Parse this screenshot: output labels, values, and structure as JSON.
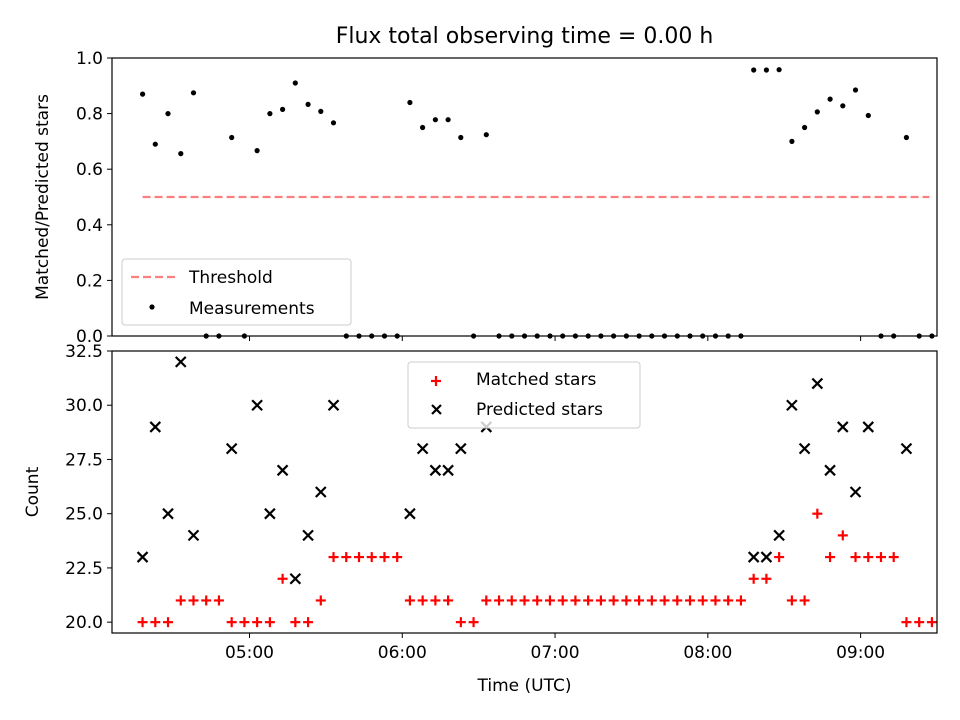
{
  "figure": {
    "title": "Flux total observing time = 0.00 h"
  },
  "chart_data": [
    {
      "type": "scatter",
      "title": "Flux total observing time = 0.00 h",
      "xlabel": "",
      "ylabel": "Matched/Predicted stars",
      "xlim": [
        "04:06",
        "09:30"
      ],
      "ylim": [
        0,
        1.0
      ],
      "yticks": [
        0.0,
        0.2,
        0.4,
        0.6,
        0.8,
        1.0
      ],
      "ytick_labels": [
        "0.0",
        "0.2",
        "0.4",
        "0.6",
        "0.8",
        "1.0"
      ],
      "grid": false,
      "legend_position": "lower-left",
      "series": [
        {
          "name": "Threshold",
          "kind": "dashed-line",
          "color": "#ff7f7f",
          "x": [
            "04:18",
            "09:27"
          ],
          "y": [
            0.5,
            0.5
          ]
        },
        {
          "name": "Measurements",
          "kind": "points",
          "color": "#000000",
          "points": [
            [
              "04:18",
              0.87
            ],
            [
              "04:23",
              0.69
            ],
            [
              "04:28",
              0.8
            ],
            [
              "04:33",
              0.656
            ],
            [
              "04:38",
              0.875
            ],
            [
              "04:43",
              0.0
            ],
            [
              "04:48",
              0.0
            ],
            [
              "04:53",
              0.714
            ],
            [
              "04:58",
              0.0
            ],
            [
              "05:03",
              0.667
            ],
            [
              "05:08",
              0.8
            ],
            [
              "05:13",
              0.815
            ],
            [
              "05:18",
              0.91
            ],
            [
              "05:23",
              0.833
            ],
            [
              "05:28",
              0.808
            ],
            [
              "05:33",
              0.767
            ],
            [
              "05:38",
              0.0
            ],
            [
              "05:43",
              0.0
            ],
            [
              "05:48",
              0.0
            ],
            [
              "05:53",
              0.0
            ],
            [
              "05:58",
              0.0
            ],
            [
              "06:03",
              0.84
            ],
            [
              "06:08",
              0.75
            ],
            [
              "06:13",
              0.778
            ],
            [
              "06:18",
              0.778
            ],
            [
              "06:23",
              0.714
            ],
            [
              "06:28",
              0.0
            ],
            [
              "06:33",
              0.724
            ],
            [
              "06:38",
              0.0
            ],
            [
              "06:43",
              0.0
            ],
            [
              "06:48",
              0.0
            ],
            [
              "06:53",
              0.0
            ],
            [
              "06:58",
              0.0
            ],
            [
              "07:03",
              0.0
            ],
            [
              "07:08",
              0.0
            ],
            [
              "07:13",
              0.0
            ],
            [
              "07:18",
              0.0
            ],
            [
              "07:23",
              0.0
            ],
            [
              "07:28",
              0.0
            ],
            [
              "07:33",
              0.0
            ],
            [
              "07:38",
              0.0
            ],
            [
              "07:43",
              0.0
            ],
            [
              "07:48",
              0.0
            ],
            [
              "07:53",
              0.0
            ],
            [
              "07:58",
              0.0
            ],
            [
              "08:03",
              0.0
            ],
            [
              "08:08",
              0.0
            ],
            [
              "08:13",
              0.0
            ],
            [
              "08:18",
              0.957
            ],
            [
              "08:23",
              0.957
            ],
            [
              "08:28",
              0.958
            ],
            [
              "08:33",
              0.7
            ],
            [
              "08:38",
              0.75
            ],
            [
              "08:43",
              0.806
            ],
            [
              "08:48",
              0.852
            ],
            [
              "08:53",
              0.828
            ],
            [
              "08:58",
              0.885
            ],
            [
              "09:03",
              0.793
            ],
            [
              "09:08",
              0.0
            ],
            [
              "09:13",
              0.0
            ],
            [
              "09:18",
              0.714
            ],
            [
              "09:23",
              0.0
            ],
            [
              "09:28",
              0.0
            ]
          ]
        }
      ]
    },
    {
      "type": "scatter",
      "title": "",
      "xlabel": "Time (UTC)",
      "ylabel": "Count",
      "xlim": [
        "04:06",
        "09:30"
      ],
      "ylim": [
        19.5,
        32.5
      ],
      "xticks": [
        "05:00",
        "06:00",
        "07:00",
        "08:00",
        "09:00"
      ],
      "xtick_labels": [
        "05:00",
        "06:00",
        "07:00",
        "08:00",
        "09:00"
      ],
      "yticks": [
        20.0,
        22.5,
        25.0,
        27.5,
        30.0,
        32.5
      ],
      "ytick_labels": [
        "20.0",
        "22.5",
        "25.0",
        "27.5",
        "30.0",
        "32.5"
      ],
      "grid": false,
      "legend_position": "upper-center",
      "series": [
        {
          "name": "Matched stars",
          "marker": "plus",
          "color": "#ff0000",
          "points": [
            [
              "04:18",
              20
            ],
            [
              "04:23",
              20
            ],
            [
              "04:28",
              20
            ],
            [
              "04:33",
              21
            ],
            [
              "04:38",
              21
            ],
            [
              "04:43",
              21
            ],
            [
              "04:48",
              21
            ],
            [
              "04:53",
              20
            ],
            [
              "04:58",
              20
            ],
            [
              "05:03",
              20
            ],
            [
              "05:08",
              20
            ],
            [
              "05:13",
              22
            ],
            [
              "05:18",
              20
            ],
            [
              "05:23",
              20
            ],
            [
              "05:28",
              21
            ],
            [
              "05:33",
              23
            ],
            [
              "05:38",
              23
            ],
            [
              "05:43",
              23
            ],
            [
              "05:48",
              23
            ],
            [
              "05:53",
              23
            ],
            [
              "05:58",
              23
            ],
            [
              "06:03",
              21
            ],
            [
              "06:08",
              21
            ],
            [
              "06:13",
              21
            ],
            [
              "06:18",
              21
            ],
            [
              "06:23",
              20
            ],
            [
              "06:28",
              20
            ],
            [
              "06:33",
              21
            ],
            [
              "06:38",
              21
            ],
            [
              "06:43",
              21
            ],
            [
              "06:48",
              21
            ],
            [
              "06:53",
              21
            ],
            [
              "06:58",
              21
            ],
            [
              "07:03",
              21
            ],
            [
              "07:08",
              21
            ],
            [
              "07:13",
              21
            ],
            [
              "07:18",
              21
            ],
            [
              "07:23",
              21
            ],
            [
              "07:28",
              21
            ],
            [
              "07:33",
              21
            ],
            [
              "07:38",
              21
            ],
            [
              "07:43",
              21
            ],
            [
              "07:48",
              21
            ],
            [
              "07:53",
              21
            ],
            [
              "07:58",
              21
            ],
            [
              "08:03",
              21
            ],
            [
              "08:08",
              21
            ],
            [
              "08:13",
              21
            ],
            [
              "08:18",
              22
            ],
            [
              "08:23",
              22
            ],
            [
              "08:28",
              23
            ],
            [
              "08:33",
              21
            ],
            [
              "08:38",
              21
            ],
            [
              "08:43",
              25
            ],
            [
              "08:48",
              23
            ],
            [
              "08:53",
              24
            ],
            [
              "08:58",
              23
            ],
            [
              "09:03",
              23
            ],
            [
              "09:08",
              23
            ],
            [
              "09:13",
              23
            ],
            [
              "09:18",
              20
            ],
            [
              "09:23",
              20
            ],
            [
              "09:28",
              20
            ]
          ]
        },
        {
          "name": "Predicted stars",
          "marker": "x",
          "color": "#000000",
          "points": [
            [
              "04:18",
              23
            ],
            [
              "04:23",
              29
            ],
            [
              "04:28",
              25
            ],
            [
              "04:33",
              32
            ],
            [
              "04:38",
              24
            ],
            [
              "04:53",
              28
            ],
            [
              "05:03",
              30
            ],
            [
              "05:08",
              25
            ],
            [
              "05:13",
              27
            ],
            [
              "05:18",
              22
            ],
            [
              "05:23",
              24
            ],
            [
              "05:28",
              26
            ],
            [
              "05:33",
              30
            ],
            [
              "06:03",
              25
            ],
            [
              "06:08",
              28
            ],
            [
              "06:13",
              27
            ],
            [
              "06:18",
              27
            ],
            [
              "06:23",
              28
            ],
            [
              "06:33",
              29
            ],
            [
              "08:18",
              23
            ],
            [
              "08:23",
              23
            ],
            [
              "08:28",
              24
            ],
            [
              "08:33",
              30
            ],
            [
              "08:38",
              28
            ],
            [
              "08:43",
              31
            ],
            [
              "08:48",
              27
            ],
            [
              "08:53",
              29
            ],
            [
              "08:58",
              26
            ],
            [
              "09:03",
              29
            ],
            [
              "09:18",
              28
            ]
          ]
        }
      ]
    }
  ]
}
